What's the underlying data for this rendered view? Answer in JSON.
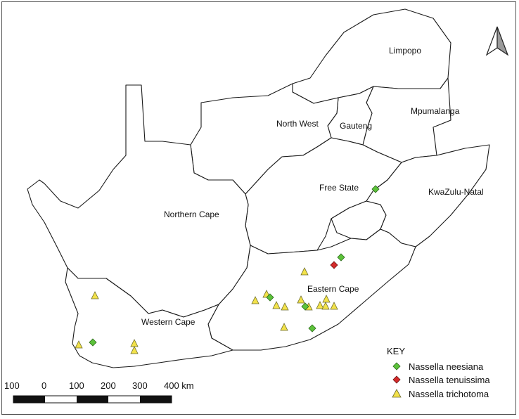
{
  "map": {
    "provinces": [
      {
        "id": "limpopo",
        "label": "Limpopo"
      },
      {
        "id": "mpumalanga",
        "label": "Mpumalanga"
      },
      {
        "id": "north-west",
        "label": "North West"
      },
      {
        "id": "gauteng",
        "label": "Gauteng"
      },
      {
        "id": "free-state",
        "label": "Free State"
      },
      {
        "id": "kwazulu-natal",
        "label": "KwaZulu-Natal"
      },
      {
        "id": "northern-cape",
        "label": "Northern Cape"
      },
      {
        "id": "eastern-cape",
        "label": "Eastern Cape"
      },
      {
        "id": "western-cape",
        "label": "Western Cape"
      }
    ],
    "north_arrow": "north-arrow-icon"
  },
  "legend": {
    "title": "KEY",
    "items": [
      {
        "label": "Nassella neesiana",
        "symbol": "diamond",
        "color": "#5cc23a"
      },
      {
        "label": "Nassella tenuissima",
        "symbol": "diamond",
        "color": "#d42a2a"
      },
      {
        "label": "Nassella trichotoma",
        "symbol": "triangle",
        "color": "#f3e24a"
      }
    ]
  },
  "scale_bar": {
    "ticks": [
      "100",
      "0",
      "100",
      "200",
      "300",
      "400 km"
    ]
  }
}
